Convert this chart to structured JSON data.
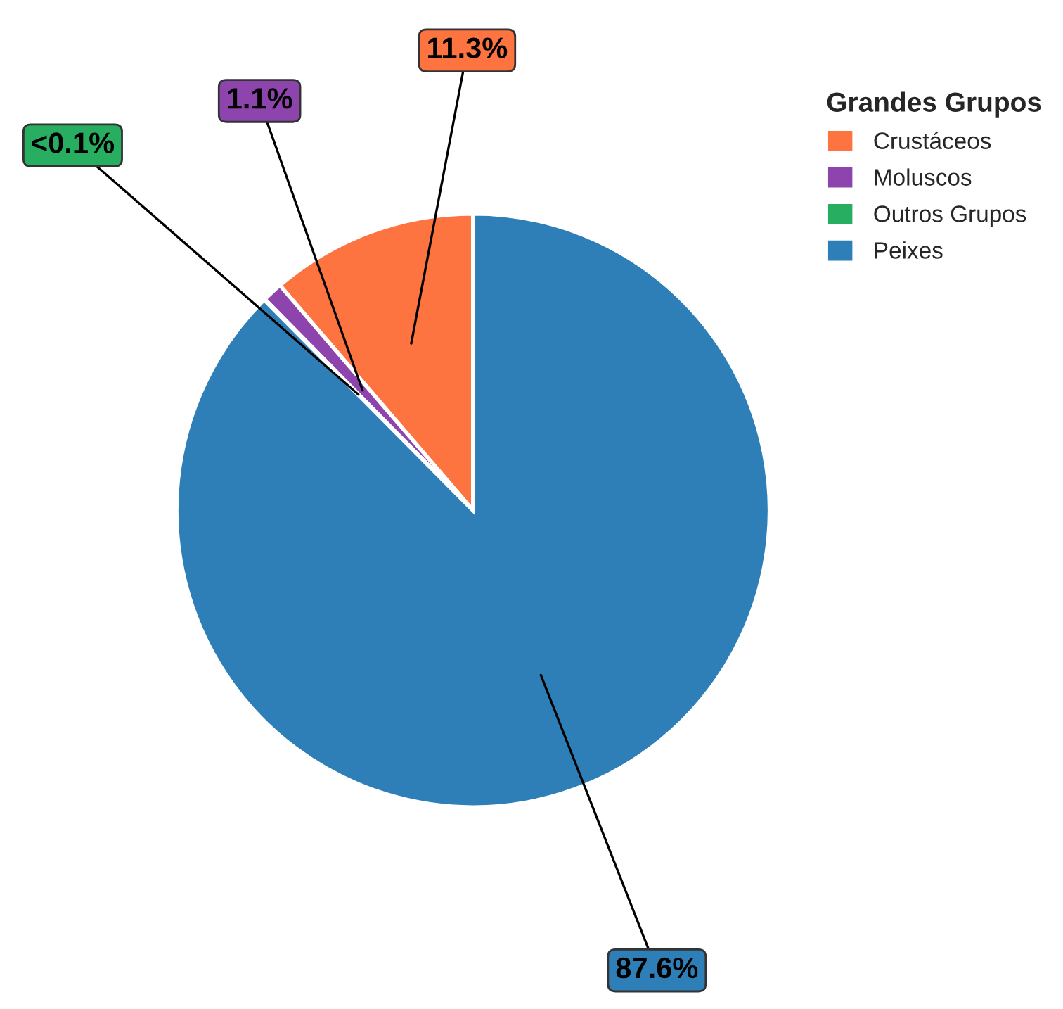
{
  "chart_data": {
    "type": "pie",
    "legend_title": "Grandes Grupos",
    "legend": "top right",
    "categories": [
      "Crustáceos",
      "Moluscos",
      "Outros Grupos",
      "Peixes"
    ],
    "values": [
      11.3,
      1.1,
      0.05,
      87.6
    ],
    "value_labels": [
      "11.3%",
      "1.1%",
      "<0.1%",
      "87.6%"
    ],
    "colors": [
      "#fe7440",
      "#8e44ad",
      "#27ae60",
      "#2e7fb8"
    ]
  }
}
